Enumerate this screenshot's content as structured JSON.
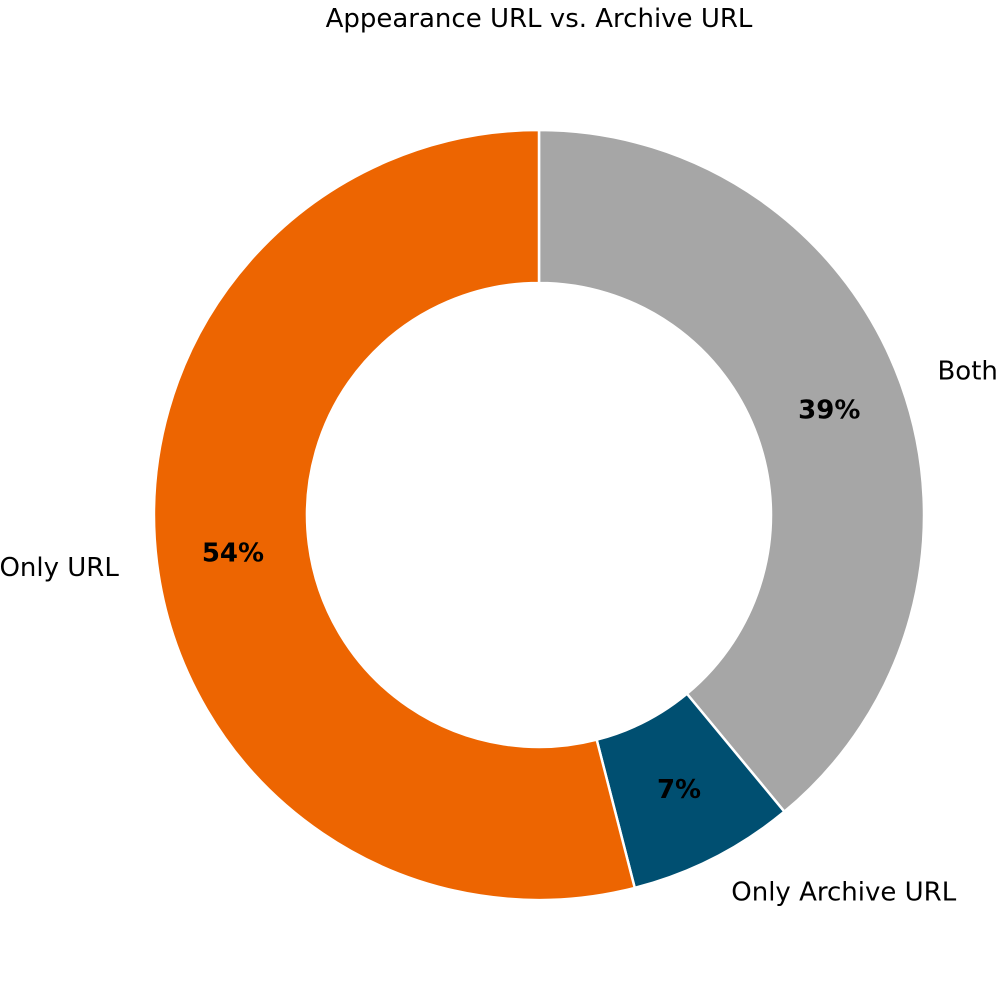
{
  "chart_data": {
    "type": "pie",
    "title": "Appearance URL vs. Archive URL",
    "donut": true,
    "start": "top",
    "direction": "clockwise",
    "slices": [
      {
        "label": "Both",
        "value": 39,
        "pct_label": "39%",
        "color": "#a6a6a6"
      },
      {
        "label": "Only Archive URL",
        "value": 7,
        "pct_label": "7%",
        "color": "#004f71"
      },
      {
        "label": "Only URL",
        "value": 54,
        "pct_label": "54%",
        "color": "#ed6501"
      }
    ],
    "slice_border_color": "#ffffff",
    "legend": "none"
  }
}
